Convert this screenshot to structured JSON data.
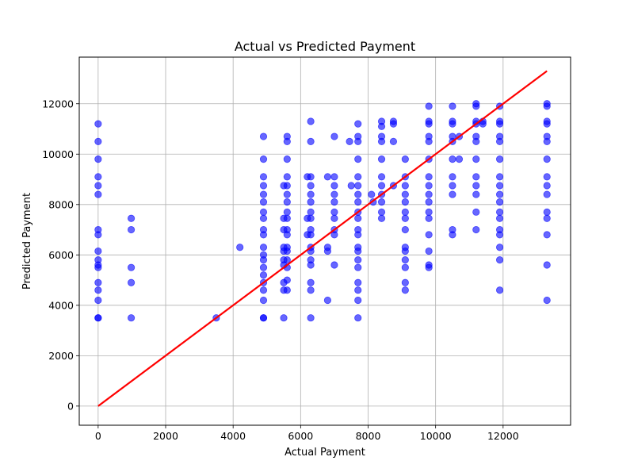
{
  "chart_data": {
    "type": "scatter",
    "title": "Actual vs Predicted Payment",
    "xlabel": "Actual Payment",
    "ylabel": "Predicted Payment",
    "xlim": [
      -560,
      14000
    ],
    "ylim": [
      -760,
      13850
    ],
    "x_ticks": [
      0,
      2000,
      4000,
      6000,
      8000,
      10000,
      12000
    ],
    "y_ticks": [
      0,
      2000,
      4000,
      6000,
      8000,
      10000,
      12000
    ],
    "grid": true,
    "legend": "none",
    "point_color": "#0000ff",
    "point_opacity": 0.6,
    "reference_line": {
      "color": "#ff0000",
      "from": [
        0,
        0
      ],
      "to": [
        13300,
        13300
      ]
    },
    "points": [
      [
        0,
        3500
      ],
      [
        0,
        3500
      ],
      [
        0,
        4200
      ],
      [
        0,
        4600
      ],
      [
        0,
        4900
      ],
      [
        0,
        5500
      ],
      [
        0,
        5600
      ],
      [
        0,
        5800
      ],
      [
        0,
        6150
      ],
      [
        0,
        6800
      ],
      [
        0,
        7000
      ],
      [
        0,
        8400
      ],
      [
        0,
        8750
      ],
      [
        0,
        9100
      ],
      [
        0,
        9800
      ],
      [
        0,
        10500
      ],
      [
        0,
        11200
      ],
      [
        980,
        3500
      ],
      [
        980,
        4900
      ],
      [
        980,
        5500
      ],
      [
        980,
        7000
      ],
      [
        980,
        7450
      ],
      [
        3500,
        3500
      ],
      [
        4200,
        6300
      ],
      [
        4900,
        3500
      ],
      [
        4900,
        3500
      ],
      [
        4900,
        4200
      ],
      [
        4900,
        4600
      ],
      [
        4900,
        4900
      ],
      [
        4900,
        5200
      ],
      [
        4900,
        5500
      ],
      [
        4900,
        5800
      ],
      [
        4900,
        6000
      ],
      [
        4900,
        6300
      ],
      [
        4900,
        6800
      ],
      [
        4900,
        7000
      ],
      [
        4900,
        7450
      ],
      [
        4900,
        7700
      ],
      [
        4900,
        8100
      ],
      [
        4900,
        8400
      ],
      [
        4900,
        8750
      ],
      [
        4900,
        9100
      ],
      [
        4900,
        9800
      ],
      [
        4900,
        10700
      ],
      [
        5500,
        3500
      ],
      [
        5500,
        4600
      ],
      [
        5500,
        4900
      ],
      [
        5500,
        5600
      ],
      [
        5500,
        5800
      ],
      [
        5500,
        6150
      ],
      [
        5500,
        6300
      ],
      [
        5500,
        7000
      ],
      [
        5500,
        7450
      ],
      [
        5500,
        8750
      ],
      [
        5600,
        4600
      ],
      [
        5600,
        5000
      ],
      [
        5600,
        5500
      ],
      [
        5600,
        5800
      ],
      [
        5600,
        6150
      ],
      [
        5600,
        6300
      ],
      [
        5600,
        6800
      ],
      [
        5600,
        7000
      ],
      [
        5600,
        7450
      ],
      [
        5600,
        7700
      ],
      [
        5600,
        8100
      ],
      [
        5600,
        8400
      ],
      [
        5600,
        8750
      ],
      [
        5600,
        9100
      ],
      [
        5600,
        9800
      ],
      [
        5600,
        10500
      ],
      [
        5600,
        10700
      ],
      [
        6200,
        6800
      ],
      [
        6200,
        7450
      ],
      [
        6200,
        9100
      ],
      [
        6300,
        3500
      ],
      [
        6300,
        4600
      ],
      [
        6300,
        4900
      ],
      [
        6300,
        5600
      ],
      [
        6300,
        5800
      ],
      [
        6300,
        6150
      ],
      [
        6300,
        6300
      ],
      [
        6300,
        6800
      ],
      [
        6300,
        7000
      ],
      [
        6300,
        7450
      ],
      [
        6300,
        7700
      ],
      [
        6300,
        8100
      ],
      [
        6300,
        8400
      ],
      [
        6300,
        8750
      ],
      [
        6300,
        9100
      ],
      [
        6300,
        10500
      ],
      [
        6300,
        11300
      ],
      [
        6800,
        4200
      ],
      [
        6800,
        6150
      ],
      [
        6800,
        6300
      ],
      [
        6800,
        9100
      ],
      [
        7000,
        5600
      ],
      [
        7000,
        6800
      ],
      [
        7000,
        7000
      ],
      [
        7000,
        7450
      ],
      [
        7000,
        7700
      ],
      [
        7000,
        8100
      ],
      [
        7000,
        8400
      ],
      [
        7000,
        8750
      ],
      [
        7000,
        9100
      ],
      [
        7000,
        10700
      ],
      [
        7450,
        10500
      ],
      [
        7500,
        8750
      ],
      [
        7700,
        3500
      ],
      [
        7700,
        4200
      ],
      [
        7700,
        4600
      ],
      [
        7700,
        4900
      ],
      [
        7700,
        5500
      ],
      [
        7700,
        5800
      ],
      [
        7700,
        6150
      ],
      [
        7700,
        6300
      ],
      [
        7700,
        6800
      ],
      [
        7700,
        7000
      ],
      [
        7700,
        7450
      ],
      [
        7700,
        7700
      ],
      [
        7700,
        8100
      ],
      [
        7700,
        8400
      ],
      [
        7700,
        8750
      ],
      [
        7700,
        9100
      ],
      [
        7700,
        9800
      ],
      [
        7700,
        10500
      ],
      [
        7700,
        10700
      ],
      [
        7700,
        11200
      ],
      [
        8100,
        8400
      ],
      [
        8150,
        8100
      ],
      [
        8400,
        7450
      ],
      [
        8400,
        7700
      ],
      [
        8400,
        8100
      ],
      [
        8400,
        8400
      ],
      [
        8400,
        8750
      ],
      [
        8400,
        9100
      ],
      [
        8400,
        9800
      ],
      [
        8400,
        10500
      ],
      [
        8400,
        10700
      ],
      [
        8400,
        11100
      ],
      [
        8400,
        11300
      ],
      [
        8750,
        8750
      ],
      [
        8750,
        10500
      ],
      [
        8750,
        11200
      ],
      [
        8750,
        11300
      ],
      [
        9100,
        4600
      ],
      [
        9100,
        4900
      ],
      [
        9100,
        5500
      ],
      [
        9100,
        5800
      ],
      [
        9100,
        6150
      ],
      [
        9100,
        6300
      ],
      [
        9100,
        7000
      ],
      [
        9100,
        7450
      ],
      [
        9100,
        7700
      ],
      [
        9100,
        8100
      ],
      [
        9100,
        8400
      ],
      [
        9100,
        8750
      ],
      [
        9100,
        9100
      ],
      [
        9100,
        9800
      ],
      [
        9800,
        5500
      ],
      [
        9800,
        5600
      ],
      [
        9800,
        6150
      ],
      [
        9800,
        6800
      ],
      [
        9800,
        7450
      ],
      [
        9800,
        7700
      ],
      [
        9800,
        8100
      ],
      [
        9800,
        8400
      ],
      [
        9800,
        8750
      ],
      [
        9800,
        9100
      ],
      [
        9800,
        9800
      ],
      [
        9800,
        10500
      ],
      [
        9800,
        10700
      ],
      [
        9800,
        11200
      ],
      [
        9800,
        11300
      ],
      [
        9800,
        11900
      ],
      [
        10500,
        6800
      ],
      [
        10500,
        7000
      ],
      [
        10500,
        8400
      ],
      [
        10500,
        8750
      ],
      [
        10500,
        9100
      ],
      [
        10500,
        9800
      ],
      [
        10500,
        10500
      ],
      [
        10500,
        10700
      ],
      [
        10500,
        11200
      ],
      [
        10500,
        11300
      ],
      [
        10500,
        11900
      ],
      [
        10700,
        9800
      ],
      [
        10700,
        10700
      ],
      [
        11200,
        7000
      ],
      [
        11200,
        7700
      ],
      [
        11200,
        8400
      ],
      [
        11200,
        8750
      ],
      [
        11200,
        9100
      ],
      [
        11200,
        9800
      ],
      [
        11200,
        10500
      ],
      [
        11200,
        10700
      ],
      [
        11200,
        11200
      ],
      [
        11200,
        11300
      ],
      [
        11200,
        11900
      ],
      [
        11200,
        12000
      ],
      [
        11400,
        11200
      ],
      [
        11400,
        11300
      ],
      [
        11900,
        4600
      ],
      [
        11900,
        5800
      ],
      [
        11900,
        6300
      ],
      [
        11900,
        6800
      ],
      [
        11900,
        7000
      ],
      [
        11900,
        7450
      ],
      [
        11900,
        7700
      ],
      [
        11900,
        8100
      ],
      [
        11900,
        8400
      ],
      [
        11900,
        8750
      ],
      [
        11900,
        9100
      ],
      [
        11900,
        9800
      ],
      [
        11900,
        10500
      ],
      [
        11900,
        10700
      ],
      [
        11900,
        11200
      ],
      [
        11900,
        11300
      ],
      [
        11900,
        11900
      ],
      [
        13300,
        4200
      ],
      [
        13300,
        5600
      ],
      [
        13300,
        6800
      ],
      [
        13300,
        7450
      ],
      [
        13300,
        7700
      ],
      [
        13300,
        8400
      ],
      [
        13300,
        8750
      ],
      [
        13300,
        9100
      ],
      [
        13300,
        9800
      ],
      [
        13300,
        10500
      ],
      [
        13300,
        10700
      ],
      [
        13300,
        11200
      ],
      [
        13300,
        11300
      ],
      [
        13300,
        11900
      ],
      [
        13300,
        12000
      ]
    ]
  }
}
